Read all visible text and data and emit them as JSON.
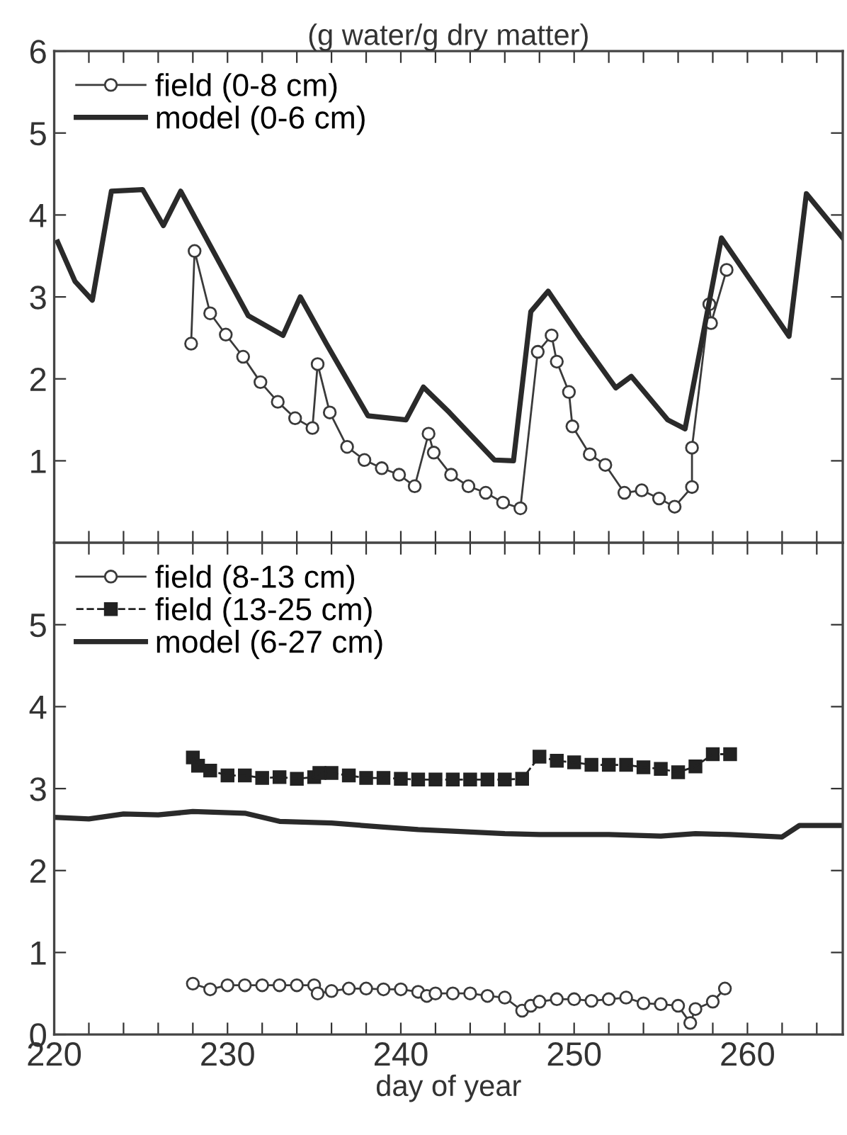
{
  "chart_data": [
    {
      "type": "line",
      "title": "(g water/g dry matter)",
      "xlim": [
        220,
        265.5
      ],
      "ylim": [
        0,
        6
      ],
      "yticks": [
        1,
        2,
        3,
        4,
        5,
        6
      ],
      "xticks": [
        {
          "value": 220,
          "label": null
        },
        {
          "value": 222,
          "label": null
        },
        {
          "value": 224,
          "label": null
        },
        {
          "value": 226,
          "label": null
        },
        {
          "value": 228,
          "label": null
        },
        {
          "value": 230,
          "label": null
        },
        {
          "value": 232,
          "label": null
        },
        {
          "value": 234,
          "label": null
        },
        {
          "value": 236,
          "label": null
        },
        {
          "value": 238,
          "label": null
        },
        {
          "value": 240,
          "label": null
        },
        {
          "value": 242,
          "label": null
        },
        {
          "value": 244,
          "label": null
        },
        {
          "value": 246,
          "label": null
        },
        {
          "value": 248,
          "label": null
        },
        {
          "value": 250,
          "label": null
        },
        {
          "value": 252,
          "label": null
        },
        {
          "value": 254,
          "label": null
        },
        {
          "value": 256,
          "label": null
        },
        {
          "value": 258,
          "label": null
        },
        {
          "value": 260,
          "label": null
        },
        {
          "value": 262,
          "label": null
        },
        {
          "value": 264,
          "label": null
        }
      ],
      "tick_labels": "y",
      "grid": false,
      "legend": "top left",
      "series": [
        {
          "name": "field (0-8 cm)",
          "color": "#3a3a3a",
          "marker": "circle",
          "line_style": "solid",
          "x": [
            227.9,
            228.1,
            229.0,
            229.9,
            230.9,
            231.9,
            232.9,
            233.9,
            234.9,
            235.2,
            235.9,
            236.9,
            237.9,
            238.9,
            239.9,
            240.8,
            241.6,
            241.9,
            242.9,
            243.9,
            244.9,
            245.9,
            246.9,
            247.9,
            248.7,
            249.0,
            249.7,
            249.9,
            250.9,
            251.8,
            252.9,
            253.9,
            254.9,
            255.8,
            256.8,
            256.8,
            257.8,
            257.9,
            258.8
          ],
          "values": [
            2.43,
            3.56,
            2.8,
            2.54,
            2.27,
            1.96,
            1.72,
            1.52,
            1.4,
            2.18,
            1.59,
            1.17,
            1.01,
            0.91,
            0.83,
            0.69,
            1.33,
            1.1,
            0.83,
            0.69,
            0.61,
            0.49,
            0.42,
            2.33,
            2.53,
            2.21,
            1.84,
            1.42,
            1.08,
            0.95,
            0.61,
            0.64,
            0.54,
            0.44,
            0.68,
            1.16,
            2.91,
            2.68,
            3.33
          ]
        },
        {
          "name": "model (0-6 cm)",
          "color": "#2a2a2a",
          "marker": "none",
          "line_style": "solid",
          "x": [
            220.2,
            221.2,
            222.2,
            223.3,
            225.1,
            226.3,
            227.3,
            231.2,
            233.2,
            234.2,
            235.7,
            238.1,
            240.3,
            241.3,
            242.8,
            245.4,
            246.5,
            247.5,
            248.5,
            250.4,
            252.4,
            253.3,
            255.4,
            256.4,
            258.5,
            262.4,
            263.4,
            265.5
          ],
          "values": [
            3.67,
            3.19,
            2.96,
            4.29,
            4.31,
            3.87,
            4.29,
            2.77,
            2.53,
            3.0,
            2.43,
            1.55,
            1.5,
            1.9,
            1.59,
            1.01,
            1.0,
            2.82,
            3.07,
            2.48,
            1.89,
            2.03,
            1.5,
            1.39,
            3.72,
            2.52,
            4.26,
            3.72
          ]
        }
      ]
    },
    {
      "type": "line",
      "xlabel": "day of year",
      "xlim": [
        220,
        265.5
      ],
      "ylim": [
        0,
        6
      ],
      "yticks": [
        0,
        1,
        2,
        3,
        4,
        5
      ],
      "xticks": [
        220,
        {
          "value": 222,
          "label": null
        },
        {
          "value": 224,
          "label": null
        },
        {
          "value": 226,
          "label": null
        },
        {
          "value": 228,
          "label": null
        },
        230,
        {
          "value": 232,
          "label": null
        },
        {
          "value": 234,
          "label": null
        },
        {
          "value": 236,
          "label": null
        },
        {
          "value": 238,
          "label": null
        },
        240,
        {
          "value": 242,
          "label": null
        },
        {
          "value": 244,
          "label": null
        },
        {
          "value": 246,
          "label": null
        },
        {
          "value": 248,
          "label": null
        },
        250,
        {
          "value": 252,
          "label": null
        },
        {
          "value": 254,
          "label": null
        },
        {
          "value": 256,
          "label": null
        },
        {
          "value": 258,
          "label": null
        },
        260,
        {
          "value": 262,
          "label": null
        },
        {
          "value": 264,
          "label": null
        }
      ],
      "grid": false,
      "legend": "top left",
      "series": [
        {
          "name": "field (8-13 cm)",
          "color": "#3a3a3a",
          "marker": "circle",
          "line_style": "solid",
          "x": [
            228,
            229,
            230,
            231,
            232,
            233,
            234,
            235,
            235.2,
            236,
            237,
            238,
            239,
            240,
            241,
            241.5,
            242,
            243,
            244,
            245,
            246,
            247,
            247.5,
            248,
            249,
            250,
            251,
            252,
            253,
            254,
            255,
            256,
            256.7,
            257,
            258,
            258.7
          ],
          "values": [
            0.62,
            0.55,
            0.6,
            0.6,
            0.6,
            0.6,
            0.6,
            0.6,
            0.5,
            0.53,
            0.56,
            0.56,
            0.55,
            0.55,
            0.52,
            0.47,
            0.5,
            0.5,
            0.5,
            0.47,
            0.45,
            0.29,
            0.35,
            0.4,
            0.43,
            0.43,
            0.41,
            0.43,
            0.45,
            0.38,
            0.37,
            0.35,
            0.14,
            0.31,
            0.4,
            0.56
          ]
        },
        {
          "name": "field (13-25 cm)",
          "color": "#222222",
          "marker": "square",
          "line_style": "dashed",
          "x": [
            228,
            228.3,
            229,
            230,
            231,
            232,
            233,
            234,
            235,
            235.3,
            236,
            237,
            238,
            239,
            240,
            241,
            242,
            243,
            244,
            245,
            246,
            247,
            248,
            249,
            250,
            251,
            252,
            253,
            254,
            255,
            256,
            257,
            258,
            259
          ],
          "values": [
            3.38,
            3.28,
            3.22,
            3.16,
            3.16,
            3.13,
            3.14,
            3.12,
            3.14,
            3.19,
            3.19,
            3.16,
            3.13,
            3.13,
            3.12,
            3.11,
            3.11,
            3.11,
            3.11,
            3.11,
            3.11,
            3.12,
            3.39,
            3.34,
            3.32,
            3.29,
            3.29,
            3.29,
            3.26,
            3.24,
            3.2,
            3.27,
            3.42,
            3.42
          ]
        },
        {
          "name": "model (6-27 cm)",
          "color": "#2a2a2a",
          "marker": "none",
          "line_style": "solid",
          "x": [
            220,
            222,
            224,
            226,
            228,
            231,
            233,
            236,
            239,
            241,
            243,
            246,
            248,
            252,
            255,
            257,
            259,
            262,
            263,
            265.5
          ],
          "values": [
            2.65,
            2.63,
            2.69,
            2.68,
            2.72,
            2.7,
            2.6,
            2.58,
            2.53,
            2.5,
            2.48,
            2.45,
            2.44,
            2.44,
            2.42,
            2.45,
            2.44,
            2.41,
            2.55,
            2.55
          ]
        }
      ]
    }
  ]
}
